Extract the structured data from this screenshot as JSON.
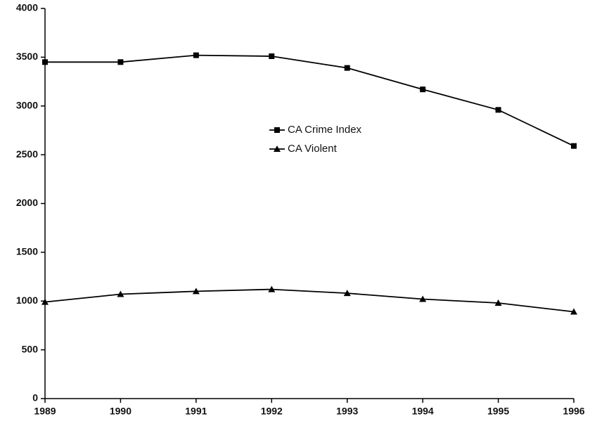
{
  "chart_data": {
    "type": "line",
    "x": [
      1989,
      1990,
      1991,
      1992,
      1993,
      1994,
      1995,
      1996
    ],
    "xlim": [
      1989,
      1996
    ],
    "xticks": [
      1989,
      1990,
      1991,
      1992,
      1993,
      1994,
      1995,
      1996
    ],
    "ylim": [
      0,
      4000
    ],
    "yticks": [
      0,
      500,
      1000,
      1500,
      2000,
      2500,
      3000,
      3500,
      4000
    ],
    "grid": false,
    "series": [
      {
        "name": "CA Crime Index",
        "color": "#000000",
        "marker": "square",
        "values": [
          3450,
          3450,
          3520,
          3510,
          3390,
          3170,
          2960,
          2590
        ]
      },
      {
        "name": "CA Violent",
        "color": "#000000",
        "marker": "triangle",
        "values": [
          990,
          1070,
          1100,
          1120,
          1080,
          1020,
          980,
          890
        ]
      }
    ]
  }
}
